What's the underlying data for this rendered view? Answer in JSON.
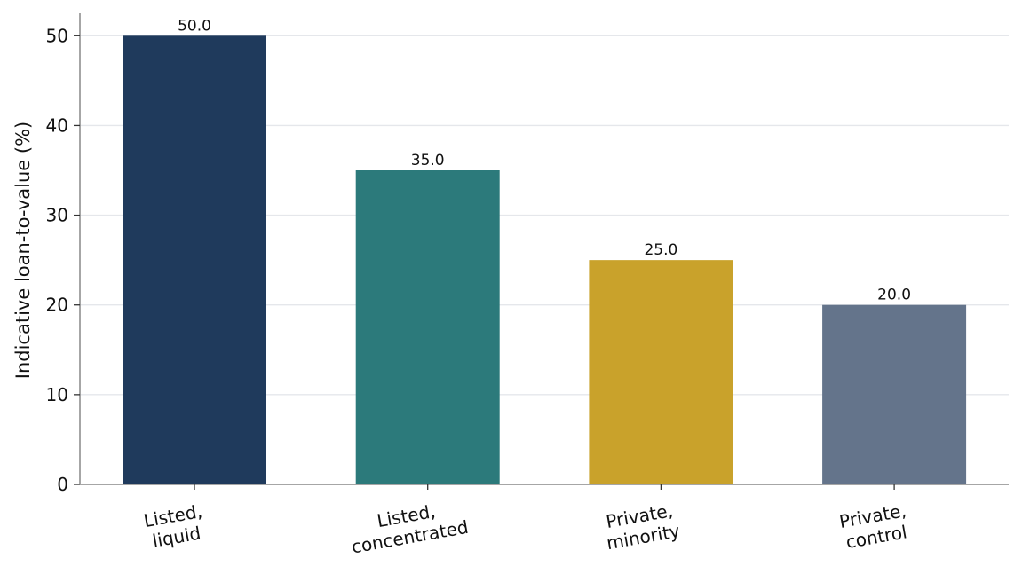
{
  "chart_data": {
    "type": "bar",
    "title": "",
    "xlabel": "",
    "ylabel": "Indicative loan-to-value (%)",
    "categories": [
      [
        "Listed,",
        "liquid"
      ],
      [
        "Listed,",
        "concentrated"
      ],
      [
        "Private,",
        "minority"
      ],
      [
        "Private,",
        "control"
      ]
    ],
    "values": [
      50.0,
      35.0,
      25.0,
      20.0
    ],
    "value_labels": [
      "50.0",
      "35.0",
      "25.0",
      "20.0"
    ],
    "colors": [
      "#1f3a5c",
      "#2c7a7b",
      "#c9a22b",
      "#64748b"
    ],
    "ylim": [
      0,
      52.5
    ],
    "yticks": [
      0,
      10,
      20,
      30,
      40,
      50
    ],
    "ytick_labels": [
      "0",
      "10",
      "20",
      "30",
      "40",
      "50"
    ],
    "grid": "horizontal",
    "grid_color": "#e5e7eb",
    "axis_color": "#888888",
    "legend": "none"
  }
}
